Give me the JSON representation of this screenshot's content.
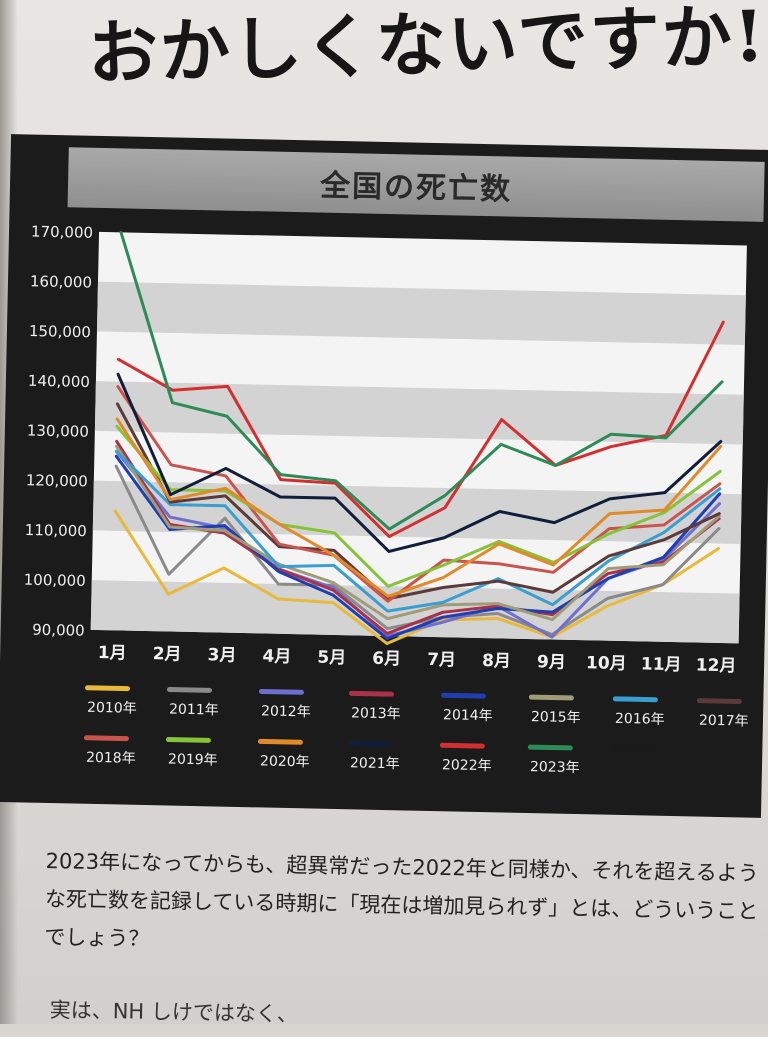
{
  "headline": "おかしくないですか!?",
  "chart_data": {
    "type": "line",
    "title": "全国の死亡数",
    "categories": [
      "1月",
      "2月",
      "3月",
      "4月",
      "5月",
      "6月",
      "7月",
      "8月",
      "9月",
      "10月",
      "11月",
      "12月"
    ],
    "ylim": [
      90000,
      170000
    ],
    "yticks": [
      "170,000",
      "160,000",
      "150,000",
      "140,000",
      "130,000",
      "120,000",
      "110,000",
      "100,000",
      "90,000"
    ],
    "grid": "horizontal bands",
    "legend": "bottom",
    "series": [
      {
        "name": "2010年",
        "color": "#e8b93a",
        "values": [
          114000,
          97500,
          103000,
          97000,
          96500,
          88500,
          93500,
          94000,
          90500,
          97000,
          101500,
          109000
        ]
      },
      {
        "name": "2011年",
        "color": "#8a8a8a",
        "values": [
          123000,
          101500,
          113000,
          100000,
          100000,
          91500,
          94000,
          95000,
          91000,
          98500,
          101500,
          113000
        ]
      },
      {
        "name": "2012年",
        "color": "#6f6fd0",
        "values": [
          126000,
          113000,
          111000,
          103000,
          99500,
          90000,
          93000,
          96500,
          90500,
          102500,
          106500,
          118000
        ]
      },
      {
        "name": "2013年",
        "color": "#a8324a",
        "values": [
          128000,
          111500,
          110000,
          103000,
          99000,
          90500,
          95000,
          96500,
          95000,
          103500,
          106000,
          115000
        ]
      },
      {
        "name": "2014年",
        "color": "#1f3fb0",
        "values": [
          125000,
          110500,
          111500,
          102500,
          98000,
          89500,
          94000,
          96000,
          95500,
          102500,
          107000,
          120000
        ]
      },
      {
        "name": "2015年",
        "color": "#a09c78",
        "values": [
          127000,
          111000,
          110500,
          104000,
          100500,
          93500,
          96500,
          97000,
          94000,
          104500,
          105500,
          115500
        ]
      },
      {
        "name": "2016年",
        "color": "#3a9fd0",
        "values": [
          126000,
          115500,
          115500,
          103500,
          104000,
          95000,
          97000,
          102000,
          97000,
          106000,
          112000,
          121000
        ]
      },
      {
        "name": "2017年",
        "color": "#5c3a3a",
        "values": [
          135500,
          116000,
          117500,
          107500,
          107000,
          97500,
          100000,
          101500,
          99500,
          107000,
          110500,
          116000
        ]
      },
      {
        "name": "2018年",
        "color": "#c9544c",
        "values": [
          139000,
          123500,
          121500,
          108000,
          106000,
          97000,
          105500,
          105000,
          103500,
          112500,
          113500,
          122000
        ]
      },
      {
        "name": "2019年",
        "color": "#86c23a",
        "values": [
          131000,
          118500,
          118500,
          112000,
          110500,
          100000,
          104500,
          109500,
          105500,
          111500,
          116000,
          124500
        ]
      },
      {
        "name": "2020年",
        "color": "#e08a2a",
        "values": [
          132500,
          116500,
          119000,
          112000,
          106000,
          98000,
          102000,
          109000,
          105000,
          115500,
          116500,
          129500
        ]
      },
      {
        "name": "2021年",
        "color": "#111d3a",
        "values": [
          141500,
          117500,
          123000,
          117500,
          117500,
          107000,
          110000,
          115500,
          113500,
          118500,
          120000,
          130500
        ]
      },
      {
        "name": "2022年",
        "color": "#d32f2f",
        "values": [
          144500,
          138500,
          139500,
          121000,
          120500,
          110000,
          116000,
          134000,
          125000,
          129000,
          131500,
          154500
        ]
      },
      {
        "name": "2023年",
        "color": "#2e8b57",
        "values": [
          170000,
          136000,
          133500,
          122000,
          121000,
          111500,
          118500,
          129000,
          125000,
          131500,
          131000,
          142500
        ]
      }
    ],
    "legend_extra_swatch": "#1a1a1a"
  },
  "body": {
    "para1": "2023年になってからも、超異常だった2022年と同様か、それを超えるような死亡数を記録している時期に「現在は増加見られず」とは、どういうことでしょう？",
    "para2_partial": "実は、NH                                        しけではなく、"
  }
}
